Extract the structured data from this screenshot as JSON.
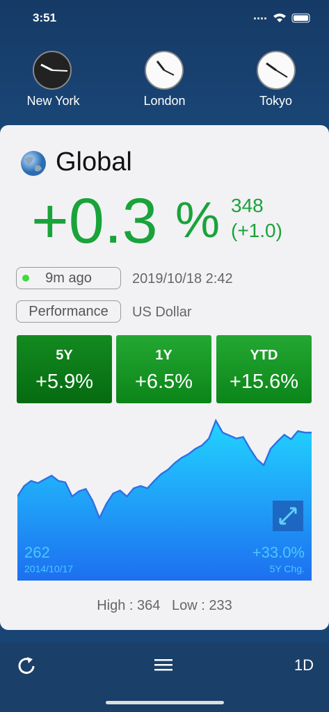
{
  "status": {
    "time": "3:51"
  },
  "clocks": [
    {
      "city": "New York"
    },
    {
      "city": "London"
    },
    {
      "city": "Tokyo"
    }
  ],
  "card": {
    "title": "Global",
    "change": "+0.3",
    "percent_sign": "%",
    "value": "348",
    "diff": "(+1.0)",
    "updated": "9m ago",
    "timestamp": "2019/10/18 2:42",
    "tag": "Performance",
    "currency": "US Dollar",
    "periods": [
      {
        "label": "5Y",
        "value": "+5.9%"
      },
      {
        "label": "1Y",
        "value": "+6.5%"
      },
      {
        "label": "YTD",
        "value": "+15.6%"
      }
    ],
    "chart": {
      "start_value": "262",
      "start_date": "2014/10/17",
      "change": "+33.0%",
      "change_label": "5Y Chg.",
      "values": [
        262,
        276,
        283,
        280,
        285,
        290,
        283,
        281,
        262,
        269,
        272,
        256,
        233,
        252,
        266,
        270,
        262,
        273,
        276,
        273,
        283,
        292,
        298,
        307,
        314,
        319,
        326,
        331,
        340,
        364,
        348,
        344,
        340,
        342,
        326,
        312,
        304,
        326,
        336,
        345,
        339,
        350,
        348,
        348
      ]
    },
    "stats": {
      "high_label": "High :",
      "high": "364",
      "low_label": "Low :",
      "low": "233"
    }
  },
  "toolbar": {
    "range": "1D"
  }
}
